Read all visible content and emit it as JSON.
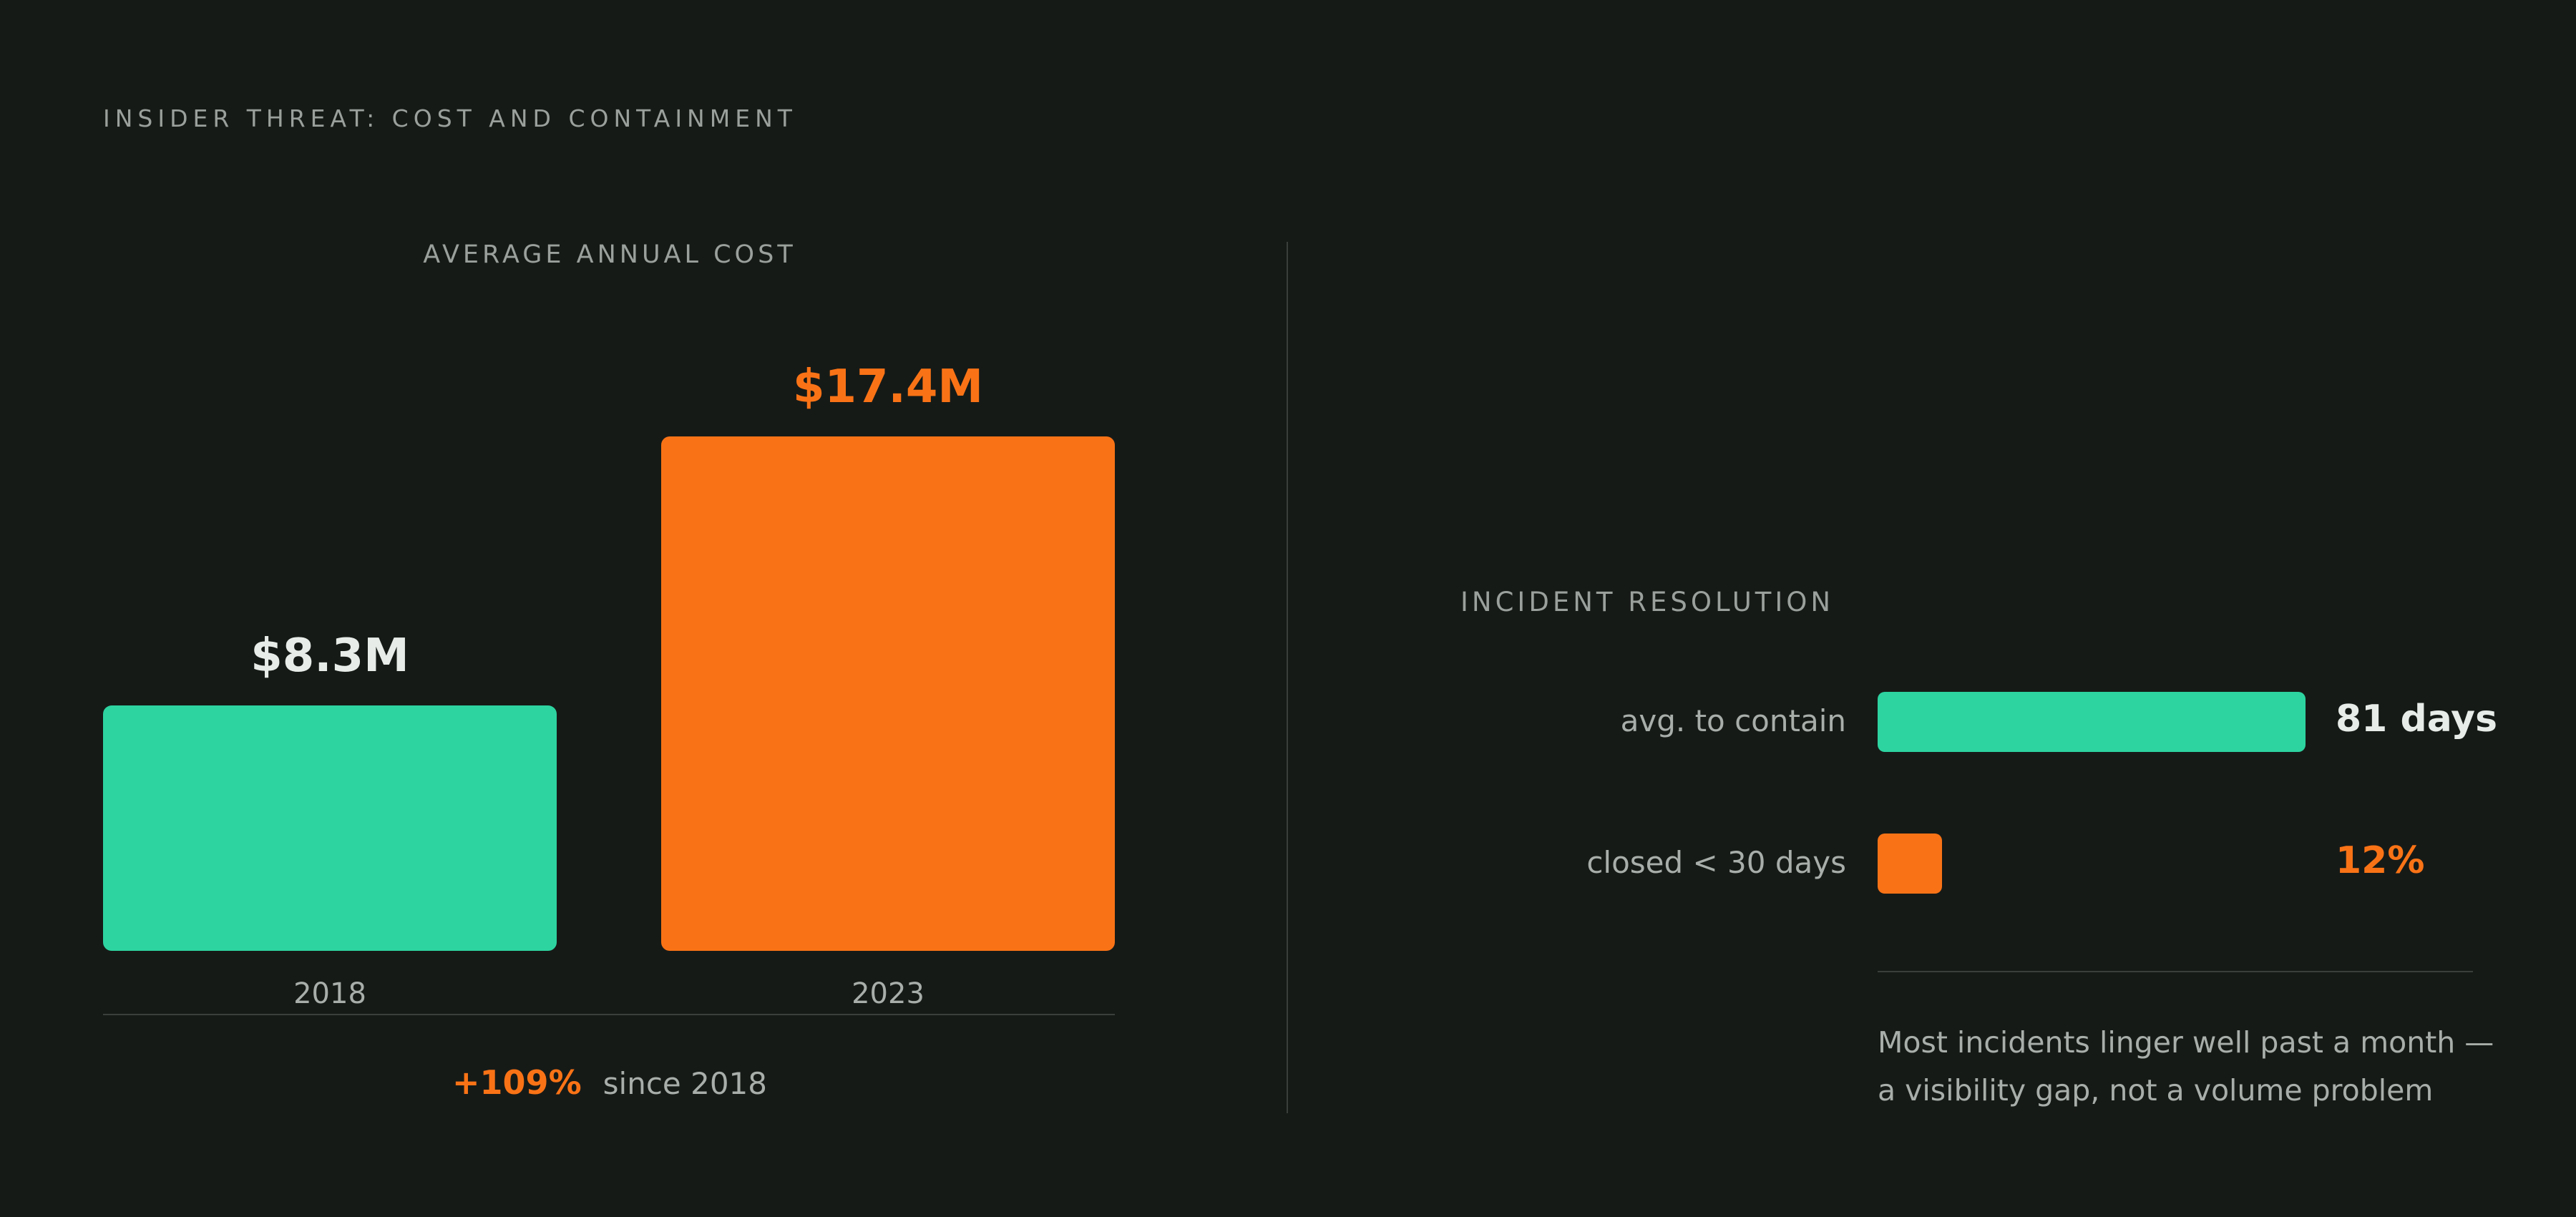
{
  "header": {
    "eyebrow": "INSIDER THREAT: COST AND CONTAINMENT"
  },
  "colors": {
    "teal": "#2dd4a0",
    "orange": "#f97316",
    "light_text": "#e8ece9",
    "muted_text": "#a8aea9",
    "background": "#161a17"
  },
  "chart_data": [
    {
      "type": "bar",
      "title": "AVERAGE ANNUAL COST",
      "categories": [
        "2018",
        "2023"
      ],
      "values": [
        8.3,
        17.4
      ],
      "value_labels": [
        "$8.3M",
        "$17.4M"
      ],
      "unit": "$M",
      "bar_colors": [
        "#2dd4a0",
        "#f97316"
      ],
      "value_label_colors": [
        "#e8ece9",
        "#f97316"
      ],
      "ylim": [
        0,
        17.4
      ],
      "grid": false
    },
    {
      "type": "bar",
      "orientation": "horizontal",
      "title": "INCIDENT RESOLUTION",
      "categories": [
        "avg. to contain",
        "closed < 30 days"
      ],
      "values": [
        81,
        12
      ],
      "value_labels": [
        "81 days",
        "12%"
      ],
      "bar_colors": [
        "#2dd4a0",
        "#f97316"
      ],
      "value_label_colors": [
        "#e8ece9",
        "#f97316"
      ],
      "grid": false
    }
  ],
  "change": {
    "value": "+109%",
    "suffix": "since 2018"
  },
  "note": {
    "line1": "Most incidents linger well past a month —",
    "line2": "a visibility gap, not a volume problem"
  }
}
